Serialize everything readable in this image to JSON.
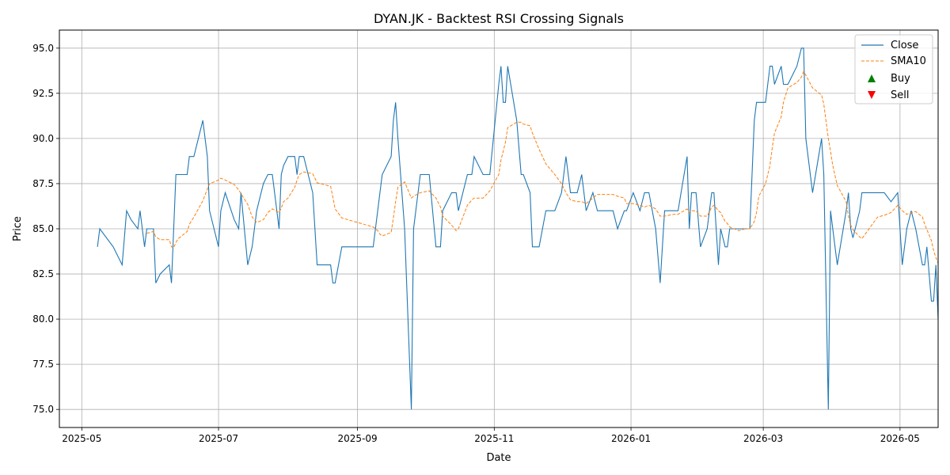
{
  "chart_data": {
    "type": "line",
    "title": "DYAN.JK - Backtest RSI Crossing Signals",
    "xlabel": "Date",
    "ylabel": "Price",
    "xlim": [
      "2025-04-21",
      "2026-05-18"
    ],
    "ylim": [
      74.0,
      96.0
    ],
    "x_ticks": [
      {
        "date": "2025-05-01",
        "label": "2025-05"
      },
      {
        "date": "2025-07-01",
        "label": "2025-07"
      },
      {
        "date": "2025-09-01",
        "label": "2025-09"
      },
      {
        "date": "2025-11-01",
        "label": "2025-11"
      },
      {
        "date": "2026-01-01",
        "label": "2026-01"
      },
      {
        "date": "2026-03-01",
        "label": "2026-03"
      },
      {
        "date": "2026-05-01",
        "label": "2026-05"
      }
    ],
    "y_ticks": [
      {
        "value": 75.0,
        "label": "75.0"
      },
      {
        "value": 77.5,
        "label": "77.5"
      },
      {
        "value": 80.0,
        "label": "80.0"
      },
      {
        "value": 82.5,
        "label": "82.5"
      },
      {
        "value": 85.0,
        "label": "85.0"
      },
      {
        "value": 87.5,
        "label": "87.5"
      },
      {
        "value": 90.0,
        "label": "90.0"
      },
      {
        "value": 92.5,
        "label": "92.5"
      },
      {
        "value": 95.0,
        "label": "95.0"
      }
    ],
    "grid": true,
    "legend_position": "top-right",
    "series": [
      {
        "name": "Close",
        "style": "solid",
        "color": "#1f77b4",
        "points": [
          [
            "2025-05-08",
            84.0
          ],
          [
            "2025-05-09",
            85.0
          ],
          [
            "2025-05-15",
            84.0
          ],
          [
            "2025-05-19",
            83.0
          ],
          [
            "2025-05-21",
            86.0
          ],
          [
            "2025-05-23",
            85.5
          ],
          [
            "2025-05-26",
            85.0
          ],
          [
            "2025-05-27",
            86.0
          ],
          [
            "2025-05-29",
            84.0
          ],
          [
            "2025-05-30",
            85.0
          ],
          [
            "2025-06-02",
            85.0
          ],
          [
            "2025-06-03",
            82.0
          ],
          [
            "2025-06-05",
            82.5
          ],
          [
            "2025-06-09",
            83.0
          ],
          [
            "2025-06-10",
            82.0
          ],
          [
            "2025-06-11",
            85.0
          ],
          [
            "2025-06-12",
            88.0
          ],
          [
            "2025-06-13",
            88.0
          ],
          [
            "2025-06-17",
            88.0
          ],
          [
            "2025-06-18",
            89.0
          ],
          [
            "2025-06-20",
            89.0
          ],
          [
            "2025-06-24",
            91.0
          ],
          [
            "2025-06-26",
            89.0
          ],
          [
            "2025-06-27",
            86.0
          ],
          [
            "2025-07-01",
            84.0
          ],
          [
            "2025-07-02",
            86.0
          ],
          [
            "2025-07-04",
            87.0
          ],
          [
            "2025-07-08",
            85.5
          ],
          [
            "2025-07-10",
            85.0
          ],
          [
            "2025-07-11",
            87.0
          ],
          [
            "2025-07-14",
            83.0
          ],
          [
            "2025-07-16",
            84.0
          ],
          [
            "2025-07-18",
            86.0
          ],
          [
            "2025-07-21",
            87.5
          ],
          [
            "2025-07-23",
            88.0
          ],
          [
            "2025-07-25",
            88.0
          ],
          [
            "2025-07-28",
            85.0
          ],
          [
            "2025-07-29",
            88.0
          ],
          [
            "2025-07-30",
            88.5
          ],
          [
            "2025-08-01",
            89.0
          ],
          [
            "2025-08-04",
            89.0
          ],
          [
            "2025-08-05",
            88.0
          ],
          [
            "2025-08-06",
            89.0
          ],
          [
            "2025-08-08",
            89.0
          ],
          [
            "2025-08-12",
            87.0
          ],
          [
            "2025-08-14",
            83.0
          ],
          [
            "2025-08-20",
            83.0
          ],
          [
            "2025-08-21",
            82.0
          ],
          [
            "2025-08-22",
            82.0
          ],
          [
            "2025-08-25",
            84.0
          ],
          [
            "2025-09-08",
            84.0
          ],
          [
            "2025-09-10",
            86.0
          ],
          [
            "2025-09-11",
            87.0
          ],
          [
            "2025-09-12",
            88.0
          ],
          [
            "2025-09-16",
            89.0
          ],
          [
            "2025-09-17",
            91.0
          ],
          [
            "2025-09-18",
            92.0
          ],
          [
            "2025-09-19",
            90.0
          ],
          [
            "2025-09-22",
            85.0
          ],
          [
            "2025-09-25",
            75.0
          ],
          [
            "2025-09-26",
            85.0
          ],
          [
            "2025-09-29",
            88.0
          ],
          [
            "2025-10-03",
            88.0
          ],
          [
            "2025-10-06",
            84.0
          ],
          [
            "2025-10-08",
            84.0
          ],
          [
            "2025-10-09",
            86.0
          ],
          [
            "2025-10-13",
            87.0
          ],
          [
            "2025-10-15",
            87.0
          ],
          [
            "2025-10-16",
            86.0
          ],
          [
            "2025-10-20",
            88.0
          ],
          [
            "2025-10-22",
            88.0
          ],
          [
            "2025-10-23",
            89.0
          ],
          [
            "2025-10-27",
            88.0
          ],
          [
            "2025-10-30",
            88.0
          ],
          [
            "2025-11-03",
            93.0
          ],
          [
            "2025-11-04",
            94.0
          ],
          [
            "2025-11-05",
            92.0
          ],
          [
            "2025-11-06",
            92.0
          ],
          [
            "2025-11-07",
            94.0
          ],
          [
            "2025-11-11",
            91.0
          ],
          [
            "2025-11-13",
            88.0
          ],
          [
            "2025-11-14",
            88.0
          ],
          [
            "2025-11-17",
            87.0
          ],
          [
            "2025-11-18",
            84.0
          ],
          [
            "2025-11-21",
            84.0
          ],
          [
            "2025-11-24",
            86.0
          ],
          [
            "2025-11-28",
            86.0
          ],
          [
            "2025-12-01",
            87.0
          ],
          [
            "2025-12-03",
            89.0
          ],
          [
            "2025-12-05",
            87.0
          ],
          [
            "2025-12-08",
            87.0
          ],
          [
            "2025-12-10",
            88.0
          ],
          [
            "2025-12-12",
            86.0
          ],
          [
            "2025-12-15",
            87.0
          ],
          [
            "2025-12-17",
            86.0
          ],
          [
            "2025-12-24",
            86.0
          ],
          [
            "2025-12-26",
            85.0
          ],
          [
            "2025-12-29",
            86.0
          ],
          [
            "2025-12-30",
            86.0
          ],
          [
            "2026-01-02",
            87.0
          ],
          [
            "2026-01-05",
            86.0
          ],
          [
            "2026-01-07",
            87.0
          ],
          [
            "2026-01-09",
            87.0
          ],
          [
            "2026-01-12",
            85.0
          ],
          [
            "2026-01-14",
            82.0
          ],
          [
            "2026-01-16",
            86.0
          ],
          [
            "2026-01-20",
            86.0
          ],
          [
            "2026-01-22",
            86.0
          ],
          [
            "2026-01-26",
            89.0
          ],
          [
            "2026-01-27",
            85.0
          ],
          [
            "2026-01-28",
            87.0
          ],
          [
            "2026-01-30",
            87.0
          ],
          [
            "2026-02-01",
            84.0
          ],
          [
            "2026-02-04",
            85.0
          ],
          [
            "2026-02-06",
            87.0
          ],
          [
            "2026-02-07",
            87.0
          ],
          [
            "2026-02-09",
            83.0
          ],
          [
            "2026-02-10",
            85.0
          ],
          [
            "2026-02-12",
            84.0
          ],
          [
            "2026-02-13",
            84.0
          ],
          [
            "2026-02-14",
            85.0
          ],
          [
            "2026-02-18",
            85.0
          ],
          [
            "2026-02-21",
            85.0
          ],
          [
            "2026-02-23",
            85.0
          ],
          [
            "2026-02-25",
            91.0
          ],
          [
            "2026-02-26",
            92.0
          ],
          [
            "2026-02-27",
            92.0
          ],
          [
            "2026-03-02",
            92.0
          ],
          [
            "2026-03-04",
            94.0
          ],
          [
            "2026-03-05",
            94.0
          ],
          [
            "2026-03-06",
            93.0
          ],
          [
            "2026-03-09",
            94.0
          ],
          [
            "2026-03-10",
            93.0
          ],
          [
            "2026-03-12",
            93.0
          ],
          [
            "2026-03-16",
            94.0
          ],
          [
            "2026-03-18",
            95.0
          ],
          [
            "2026-03-19",
            95.0
          ],
          [
            "2026-03-20",
            90.0
          ],
          [
            "2026-03-23",
            87.0
          ],
          [
            "2026-03-27",
            90.0
          ],
          [
            "2026-03-28",
            88.0
          ],
          [
            "2026-03-30",
            75.0
          ],
          [
            "2026-03-31",
            86.0
          ],
          [
            "2026-04-01",
            85.0
          ],
          [
            "2026-04-03",
            83.0
          ],
          [
            "2026-04-07",
            86.0
          ],
          [
            "2026-04-08",
            87.0
          ],
          [
            "2026-04-09",
            85.0
          ],
          [
            "2026-04-10",
            84.5
          ],
          [
            "2026-04-13",
            86.0
          ],
          [
            "2026-04-14",
            87.0
          ],
          [
            "2026-04-21",
            87.0
          ],
          [
            "2026-04-24",
            87.0
          ],
          [
            "2026-04-27",
            86.5
          ],
          [
            "2026-04-30",
            87.0
          ],
          [
            "2026-05-02",
            83.0
          ],
          [
            "2026-05-04",
            85.0
          ],
          [
            "2026-05-06",
            86.0
          ],
          [
            "2026-05-08",
            85.0
          ],
          [
            "2026-05-11",
            83.0
          ],
          [
            "2026-05-12",
            83.0
          ],
          [
            "2026-05-13",
            84.0
          ],
          [
            "2026-05-15",
            81.0
          ],
          [
            "2026-05-16",
            81.0
          ],
          [
            "2026-05-17",
            83.0
          ],
          [
            "2026-05-18",
            80.0
          ]
        ]
      },
      {
        "name": "SMA10",
        "style": "dashed",
        "color": "#ff7f0e",
        "points": []
      }
    ],
    "signals": {
      "buy": {
        "name": "Buy",
        "color": "#008000",
        "points": []
      },
      "sell": {
        "name": "Sell",
        "color": "#ff0000",
        "points": []
      }
    }
  }
}
